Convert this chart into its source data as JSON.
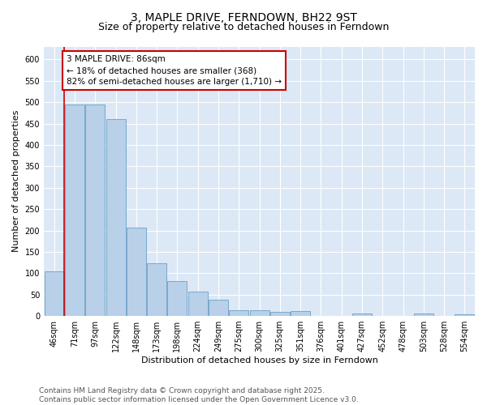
{
  "title": "3, MAPLE DRIVE, FERNDOWN, BH22 9ST",
  "subtitle": "Size of property relative to detached houses in Ferndown",
  "xlabel": "Distribution of detached houses by size in Ferndown",
  "ylabel": "Number of detached properties",
  "categories": [
    "46sqm",
    "71sqm",
    "97sqm",
    "122sqm",
    "148sqm",
    "173sqm",
    "198sqm",
    "224sqm",
    "249sqm",
    "275sqm",
    "300sqm",
    "325sqm",
    "351sqm",
    "376sqm",
    "401sqm",
    "427sqm",
    "452sqm",
    "478sqm",
    "503sqm",
    "528sqm",
    "554sqm"
  ],
  "values": [
    105,
    495,
    495,
    460,
    207,
    123,
    82,
    57,
    38,
    13,
    13,
    10,
    11,
    1,
    0,
    5,
    0,
    0,
    5,
    0,
    4
  ],
  "bar_color": "#b8d0e8",
  "bar_edge_color": "#6aa0c8",
  "vline_x": 0.5,
  "vline_color": "#cc0000",
  "annotation_text": "3 MAPLE DRIVE: 86sqm\n← 18% of detached houses are smaller (368)\n82% of semi-detached houses are larger (1,710) →",
  "annotation_box_facecolor": "#ffffff",
  "annotation_box_edgecolor": "#cc0000",
  "ylim": [
    0,
    630
  ],
  "yticks": [
    0,
    50,
    100,
    150,
    200,
    250,
    300,
    350,
    400,
    450,
    500,
    550,
    600
  ],
  "bg_color": "#ffffff",
  "plot_bg_color": "#dce8f5",
  "grid_color": "#ffffff",
  "title_fontsize": 10,
  "subtitle_fontsize": 9,
  "axis_label_fontsize": 8,
  "tick_fontsize": 7,
  "annotation_fontsize": 7.5,
  "footer": "Contains HM Land Registry data © Crown copyright and database right 2025.\nContains public sector information licensed under the Open Government Licence v3.0.",
  "footer_fontsize": 6.5
}
